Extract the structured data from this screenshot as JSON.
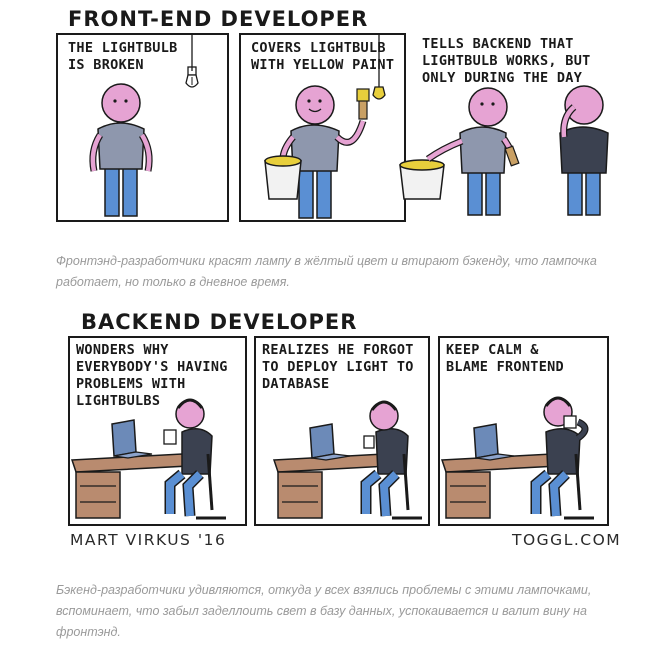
{
  "comic1": {
    "title": "FRONT-END DEVELOPER",
    "panels": [
      {
        "caption": "THE LIGHTBULB\nIS BROKEN"
      },
      {
        "caption": "COVERS LIGHTBULB\nWITH YELLOW PAINT"
      },
      {
        "caption": "TELLS BACKEND THAT\nLIGHTBULB WORKS, BUT\nONLY DURING THE DAY"
      }
    ],
    "description": "Фронтэнд-разработчики красят лампу в жёлтый цвет и втирают бэкенду, что лампочка работает, но только в дневное время."
  },
  "comic2": {
    "title": "BACKEND DEVELOPER",
    "panels": [
      {
        "caption": "WONDERS WHY\nEVERYBODY'S HAVING\nPROBLEMS WITH\nLIGHTBULBS"
      },
      {
        "caption": "REALIZES HE FORGOT\nTO DEPLOY LIGHT TO\nDATABASE"
      },
      {
        "caption": "KEEP CALM &\nBLAME FRONTEND"
      }
    ],
    "author": "MART VIRKUS '16",
    "site": "TOGGL.COM",
    "description": "Бэкенд-разработчики удивляются, откуда у всех взялись проблемы с этими лампочками, вспоминает, что забыл заделлоить свет в базу данных, успокаивается и валит вину на фронтэнд."
  },
  "colors": {
    "skin": "#e6a3d3",
    "shirt": "#8e97ad",
    "dark_shirt": "#3b4150",
    "pants": "#5a8fd3",
    "desk": "#b98b6f",
    "laptop": "#6c8ab8",
    "paint": "#e8cf3c"
  }
}
